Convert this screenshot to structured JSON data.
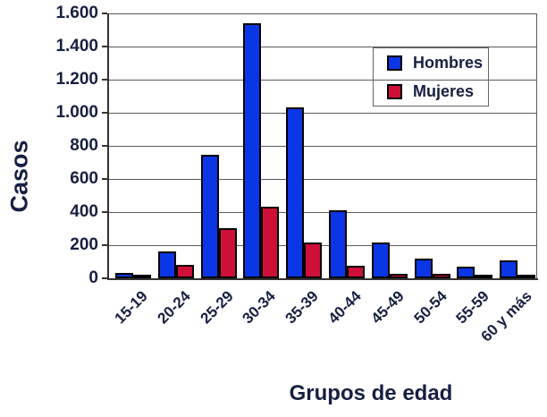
{
  "chart_data": {
    "type": "bar",
    "title": "",
    "xlabel": "Grupos de edad",
    "ylabel": "Casos",
    "categories": [
      "15-19",
      "20-24",
      "25-29",
      "30-34",
      "35-39",
      "40-44",
      "45-49",
      "50-54",
      "55-59",
      "60 y más"
    ],
    "series": [
      {
        "name": "Hombres",
        "color": "#0a36e6",
        "values": [
          30,
          160,
          745,
          1540,
          1035,
          410,
          215,
          120,
          70,
          110
        ]
      },
      {
        "name": "Mujeres",
        "color": "#ce1038",
        "values": [
          5,
          80,
          300,
          430,
          215,
          75,
          25,
          25,
          5,
          10
        ]
      }
    ],
    "ylim": [
      0,
      1600
    ],
    "ytick_step": 200,
    "ytick_labels": [
      "0",
      "200",
      "400",
      "600",
      "800",
      "1.000",
      "1.200",
      "1.400",
      "1.600"
    ],
    "grid": true,
    "legend_position": "top-right"
  },
  "colors": {
    "text": "#171f42",
    "gridline": "#5a5a5a",
    "axis": "#333333",
    "bar_outline": "#000000",
    "legend_border": "#666666",
    "background": "#ffffff"
  }
}
